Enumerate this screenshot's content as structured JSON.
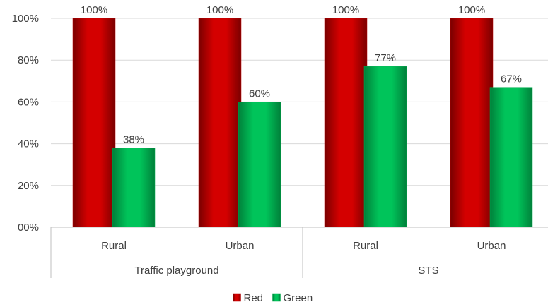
{
  "chart_data": {
    "type": "bar",
    "groups": [
      {
        "label": "Traffic playground",
        "categories": [
          "Rural",
          "Urban"
        ]
      },
      {
        "label": "STS",
        "categories": [
          "Rural",
          "Urban"
        ]
      }
    ],
    "categories": [
      "Rural",
      "Urban",
      "Rural",
      "Urban"
    ],
    "series": [
      {
        "name": "Red",
        "color": "#c00000",
        "values": [
          100,
          100,
          100,
          100
        ],
        "labels": [
          "100%",
          "100%",
          "100%",
          "100%"
        ]
      },
      {
        "name": "Green",
        "color": "#00b050",
        "values": [
          38,
          60,
          77,
          67
        ],
        "labels": [
          "38%",
          "60%",
          "77%",
          "67%"
        ]
      }
    ],
    "y_ticks": [
      "00%",
      "20%",
      "40%",
      "60%",
      "80%",
      "100%"
    ],
    "ylim": [
      0,
      100
    ],
    "grid": true,
    "legend": "bottom",
    "title": "",
    "xlabel": "",
    "ylabel": ""
  }
}
